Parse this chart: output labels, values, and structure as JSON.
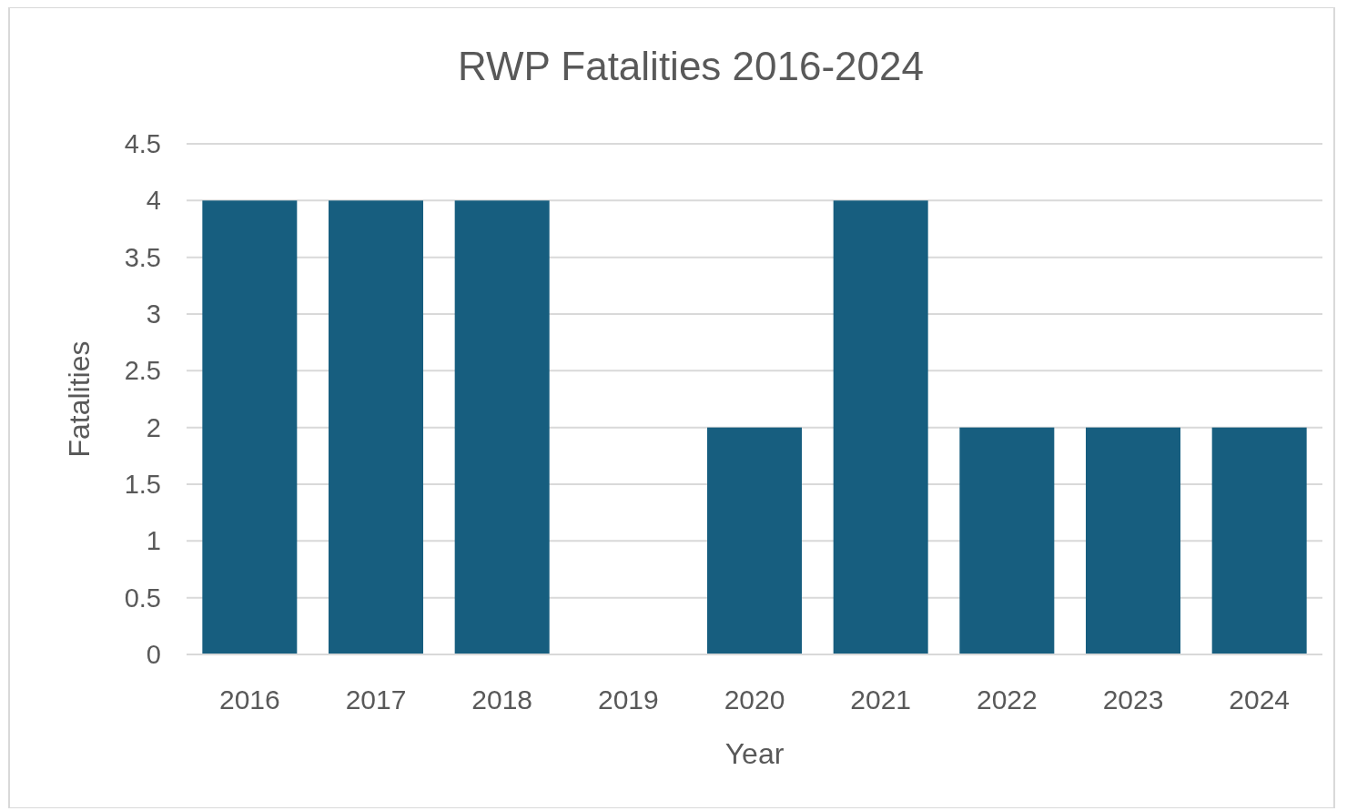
{
  "chart_data": {
    "type": "bar",
    "title": "RWP Fatalities 2016-2024",
    "xlabel": "Year",
    "ylabel": "Fatalities",
    "categories": [
      "2016",
      "2017",
      "2018",
      "2019",
      "2020",
      "2021",
      "2022",
      "2023",
      "2024"
    ],
    "values": [
      4,
      4,
      4,
      0,
      2,
      4,
      2,
      2,
      2
    ],
    "color": "#175e7f",
    "ylim": [
      0,
      4.5
    ],
    "yticks": [
      0,
      0.5,
      1,
      1.5,
      2,
      2.5,
      3,
      3.5,
      4,
      4.5
    ],
    "grid": "y"
  }
}
